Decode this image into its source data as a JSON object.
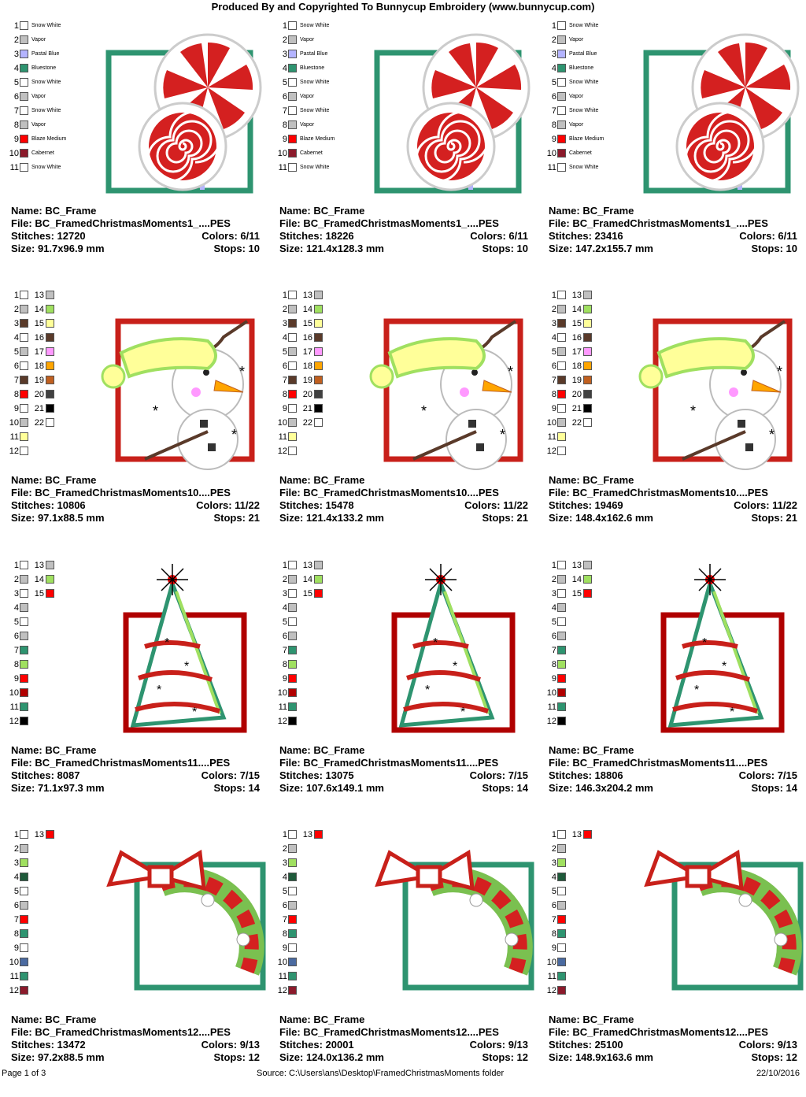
{
  "header": "Produced By and Copyrighted To Bunnycup Embroidery (www.bunnycup.com)",
  "footer": {
    "page": "Page 1 of 3",
    "source": "Source: C:\\Users\\ans\\Desktop\\FramedChristmasMoments folder",
    "date": "22/10/2016"
  },
  "labels": {
    "name": "Name:",
    "file": "File:",
    "stitches": "Stitches:",
    "colors": "Colors:",
    "size": "Size:",
    "stops": "Stops:"
  },
  "designs": [
    {
      "name": "BC_Frame",
      "file": "BC_FramedChristmasMoments1_....PES",
      "stitches": "12720",
      "colors": "6/11",
      "size": "91.7x96.9 mm",
      "stops": "10",
      "art": "candy"
    },
    {
      "name": "BC_Frame",
      "file": "BC_FramedChristmasMoments1_....PES",
      "stitches": "18226",
      "colors": "6/11",
      "size": "121.4x128.3 mm",
      "stops": "10",
      "art": "candy"
    },
    {
      "name": "BC_Frame",
      "file": "BC_FramedChristmasMoments1_....PES",
      "stitches": "23416",
      "colors": "6/11",
      "size": "147.2x155.7 mm",
      "stops": "10",
      "art": "candy"
    },
    {
      "name": "BC_Frame",
      "file": "BC_FramedChristmasMoments10....PES",
      "stitches": "10806",
      "colors": "11/22",
      "size": "97.1x88.5 mm",
      "stops": "21",
      "art": "snowman"
    },
    {
      "name": "BC_Frame",
      "file": "BC_FramedChristmasMoments10....PES",
      "stitches": "15478",
      "colors": "11/22",
      "size": "121.4x133.2 mm",
      "stops": "21",
      "art": "snowman"
    },
    {
      "name": "BC_Frame",
      "file": "BC_FramedChristmasMoments10....PES",
      "stitches": "19469",
      "colors": "11/22",
      "size": "148.4x162.6 mm",
      "stops": "21",
      "art": "snowman"
    },
    {
      "name": "BC_Frame",
      "file": "BC_FramedChristmasMoments11....PES",
      "stitches": "8087",
      "colors": "7/15",
      "size": "71.1x97.3 mm",
      "stops": "14",
      "art": "tree"
    },
    {
      "name": "BC_Frame",
      "file": "BC_FramedChristmasMoments11....PES",
      "stitches": "13075",
      "colors": "7/15",
      "size": "107.6x149.1 mm",
      "stops": "14",
      "art": "tree"
    },
    {
      "name": "BC_Frame",
      "file": "BC_FramedChristmasMoments11....PES",
      "stitches": "18806",
      "colors": "7/15",
      "size": "146.3x204.2 mm",
      "stops": "14",
      "art": "tree"
    },
    {
      "name": "BC_Frame",
      "file": "BC_FramedChristmasMoments12....PES",
      "stitches": "13472",
      "colors": "9/13",
      "size": "97.2x88.5 mm",
      "stops": "12",
      "art": "wreath"
    },
    {
      "name": "BC_Frame",
      "file": "BC_FramedChristmasMoments12....PES",
      "stitches": "20001",
      "colors": "9/13",
      "size": "124.0x136.2 mm",
      "stops": "12",
      "art": "wreath"
    },
    {
      "name": "BC_Frame",
      "file": "BC_FramedChristmasMoments12....PES",
      "stitches": "25100",
      "colors": "9/13",
      "size": "148.9x163.6 mm",
      "stops": "12",
      "art": "wreath"
    }
  ],
  "palettes": {
    "candy": [
      {
        "n": "1",
        "c": "#ffffff",
        "name": "Snow White"
      },
      {
        "n": "2",
        "c": "#c0c0c0",
        "name": "Vapor"
      },
      {
        "n": "3",
        "c": "#b4b4ff",
        "name": "Pastal Blue"
      },
      {
        "n": "4",
        "c": "#2e9470",
        "name": "Bluestone"
      },
      {
        "n": "5",
        "c": "#ffffff",
        "name": "Snow White"
      },
      {
        "n": "6",
        "c": "#c0c0c0",
        "name": "Vapor"
      },
      {
        "n": "7",
        "c": "#ffffff",
        "name": "Snow White"
      },
      {
        "n": "8",
        "c": "#c0c0c0",
        "name": "Vapor"
      },
      {
        "n": "9",
        "c": "#ff0000",
        "name": "Blaze Medium"
      },
      {
        "n": "10",
        "c": "#8b1a2b",
        "name": "Cabernet"
      },
      {
        "n": "11",
        "c": "#ffffff",
        "name": "Snow White"
      }
    ],
    "snowman": [
      {
        "n": "1",
        "c": "#ffffff",
        "n2": "13",
        "c2": "#c0c0c0"
      },
      {
        "n": "2",
        "c": "#c0c0c0",
        "n2": "14",
        "c2": "#a0e060"
      },
      {
        "n": "3",
        "c": "#5a3a2a",
        "n2": "15",
        "c2": "#ffff99"
      },
      {
        "n": "4",
        "c": "#ffffff",
        "n2": "16",
        "c2": "#5a3a2a"
      },
      {
        "n": "5",
        "c": "#c0c0c0",
        "n2": "17",
        "c2": "#ff99ff"
      },
      {
        "n": "6",
        "c": "#ffffff",
        "n2": "18",
        "c2": "#ffa500"
      },
      {
        "n": "7",
        "c": "#5a3a2a",
        "n2": "19",
        "c2": "#c06020"
      },
      {
        "n": "8",
        "c": "#ff0000",
        "n2": "20",
        "c2": "#404040"
      },
      {
        "n": "9",
        "c": "#ffffff",
        "n2": "21",
        "c2": "#000000"
      },
      {
        "n": "10",
        "c": "#c0c0c0",
        "n2": "22",
        "c2": "#ffffff"
      },
      {
        "n": "11",
        "c": "#ffff99"
      },
      {
        "n": "12",
        "c": "#ffffff"
      }
    ],
    "tree": [
      {
        "n": "1",
        "c": "#ffffff",
        "n2": "13",
        "c2": "#c0c0c0"
      },
      {
        "n": "2",
        "c": "#c0c0c0",
        "n2": "14",
        "c2": "#a0e060"
      },
      {
        "n": "3",
        "c": "#ffffff",
        "n2": "15",
        "c2": "#ff0000"
      },
      {
        "n": "4",
        "c": "#c0c0c0"
      },
      {
        "n": "5",
        "c": "#ffffff"
      },
      {
        "n": "6",
        "c": "#c0c0c0"
      },
      {
        "n": "7",
        "c": "#2e9470"
      },
      {
        "n": "8",
        "c": "#a0e060"
      },
      {
        "n": "9",
        "c": "#ff0000"
      },
      {
        "n": "10",
        "c": "#b00000"
      },
      {
        "n": "11",
        "c": "#2e9470"
      },
      {
        "n": "12",
        "c": "#000000"
      }
    ],
    "wreath": [
      {
        "n": "1",
        "c": "#ffffff",
        "n2": "13",
        "c2": "#ff0000"
      },
      {
        "n": "2",
        "c": "#c0c0c0"
      },
      {
        "n": "3",
        "c": "#a0e060"
      },
      {
        "n": "4",
        "c": "#1e5a3a"
      },
      {
        "n": "5",
        "c": "#ffffff"
      },
      {
        "n": "6",
        "c": "#c0c0c0"
      },
      {
        "n": "7",
        "c": "#ff0000"
      },
      {
        "n": "8",
        "c": "#2e9470"
      },
      {
        "n": "9",
        "c": "#ffffff"
      },
      {
        "n": "10",
        "c": "#4a6aa0"
      },
      {
        "n": "11",
        "c": "#2e9470"
      },
      {
        "n": "12",
        "c": "#8b1a2b"
      }
    ]
  }
}
